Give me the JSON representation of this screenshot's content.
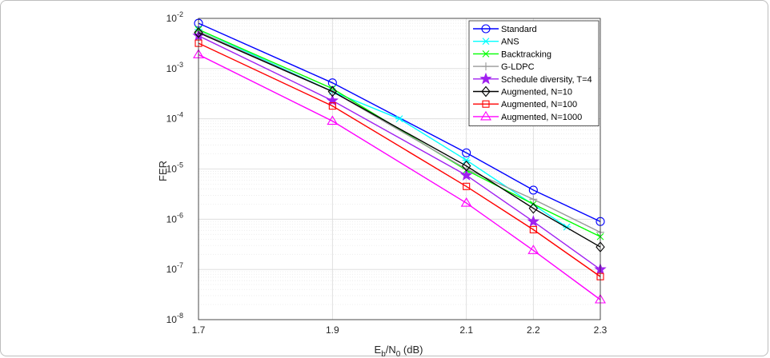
{
  "chart_data": {
    "type": "line",
    "title": "",
    "xlabel": "E_b/N_0 (dB)",
    "xlabel_parts": {
      "main": "E",
      "sub1": "b",
      "slash": "/N",
      "sub2": "0",
      "unit": " (dB)"
    },
    "ylabel": "FER",
    "y_scale": "log",
    "xlim": [
      1.7,
      2.3
    ],
    "ylim": [
      1e-08,
      0.01
    ],
    "x_ticks": [
      1.7,
      1.9,
      2.1,
      2.2,
      2.3
    ],
    "x_tick_labels": [
      "1.7",
      "1.9",
      "2.1",
      "2.2",
      "2.3"
    ],
    "y_ticks": [
      {
        "base": "10",
        "exp": "-2"
      },
      {
        "base": "10",
        "exp": "-3"
      },
      {
        "base": "10",
        "exp": "-4"
      },
      {
        "base": "10",
        "exp": "-5"
      },
      {
        "base": "10",
        "exp": "-6"
      },
      {
        "base": "10",
        "exp": "-7"
      },
      {
        "base": "10",
        "exp": "-8"
      }
    ],
    "grid": true,
    "minor_grid": true,
    "legend_position": "top-right",
    "series": [
      {
        "name": "Standard",
        "color": "#0000ff",
        "marker": "circle",
        "x": [
          1.7,
          1.9,
          2.1,
          2.2,
          2.3
        ],
        "y": [
          0.008,
          0.00052,
          2.1e-05,
          3.8e-06,
          9e-07
        ]
      },
      {
        "name": "ANS",
        "color": "#00ffff",
        "marker": "asterisk",
        "x": [
          1.7,
          1.9,
          2.0,
          2.1,
          2.25
        ],
        "y": [
          0.006,
          0.00035,
          0.0001,
          1.5e-05,
          7e-07
        ]
      },
      {
        "name": "Backtracking",
        "color": "#00ff00",
        "marker": "x",
        "x": [
          1.7,
          1.9,
          2.1,
          2.2,
          2.3
        ],
        "y": [
          0.006,
          0.0004,
          9.5e-06,
          2e-06,
          4.5e-07
        ]
      },
      {
        "name": "G-LDPC",
        "color": "#999999",
        "marker": "plus",
        "x": [
          1.7,
          1.9,
          2.1,
          2.2,
          2.3
        ],
        "y": [
          0.0055,
          0.00035,
          1e-05,
          2.5e-06,
          5.5e-07
        ]
      },
      {
        "name": "Schedule diversity, T=4",
        "color": "#a020f0",
        "marker": "star",
        "x": [
          1.7,
          1.9,
          2.1,
          2.2,
          2.3
        ],
        "y": [
          0.0045,
          0.00023,
          7.5e-06,
          9e-07,
          1e-07
        ]
      },
      {
        "name": "Augmented, N=10",
        "color": "#000000",
        "marker": "diamond",
        "x": [
          1.7,
          1.9,
          2.1,
          2.2,
          2.3
        ],
        "y": [
          0.0052,
          0.00035,
          1.15e-05,
          1.65e-06,
          2.8e-07
        ]
      },
      {
        "name": "Augmented, N=100",
        "color": "#ff0000",
        "marker": "square",
        "x": [
          1.7,
          1.9,
          2.1,
          2.2,
          2.3
        ],
        "y": [
          0.0032,
          0.00018,
          4.5e-06,
          6.2e-07,
          7.2e-08
        ]
      },
      {
        "name": "Augmented, N=1000",
        "color": "#ff00ff",
        "marker": "triangle",
        "x": [
          1.7,
          1.9,
          2.1,
          2.2,
          2.3
        ],
        "y": [
          0.0019,
          9e-05,
          2.1e-06,
          2.4e-07,
          2.5e-08
        ]
      }
    ]
  }
}
